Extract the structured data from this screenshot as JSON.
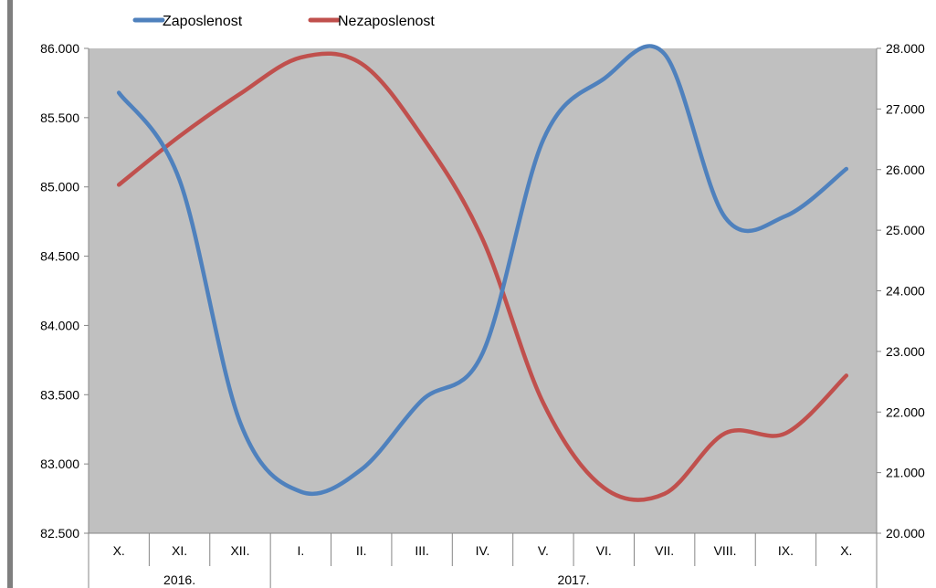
{
  "chart_data": {
    "type": "line",
    "categories": [
      "X.",
      "XI.",
      "XII.",
      "I.",
      "II.",
      "III.",
      "IV.",
      "V.",
      "VI.",
      "VII.",
      "VIII.",
      "IX.",
      "X."
    ],
    "year_groups": [
      {
        "label": "2016.",
        "span": 3
      },
      {
        "label": "2017.",
        "span": 10
      }
    ],
    "series": [
      {
        "name": "Zaposlenost",
        "axis": "left",
        "color": "#4f81bd",
        "values": [
          85680,
          85050,
          83300,
          82800,
          82960,
          83460,
          83800,
          85340,
          85780,
          85960,
          84780,
          84790,
          85130
        ]
      },
      {
        "name": "Nezaposlenost",
        "axis": "right",
        "color": "#c0504d",
        "values": [
          25750,
          26550,
          27250,
          27850,
          27750,
          26550,
          24850,
          22150,
          20750,
          20650,
          21650,
          21650,
          22600
        ]
      }
    ],
    "y_left": {
      "min": 82500,
      "max": 86000,
      "step": 500,
      "tick_labels": [
        "82.500",
        "83.000",
        "83.500",
        "84.000",
        "84.500",
        "85.000",
        "85.500",
        "86.000"
      ]
    },
    "y_right": {
      "min": 20000,
      "max": 28000,
      "step": 1000,
      "tick_labels": [
        "20.000",
        "21.000",
        "22.000",
        "23.000",
        "24.000",
        "25.000",
        "26.000",
        "27.000",
        "28.000"
      ]
    },
    "plot_background": "#c0c0c0",
    "grid": false,
    "legend": "top-left"
  }
}
